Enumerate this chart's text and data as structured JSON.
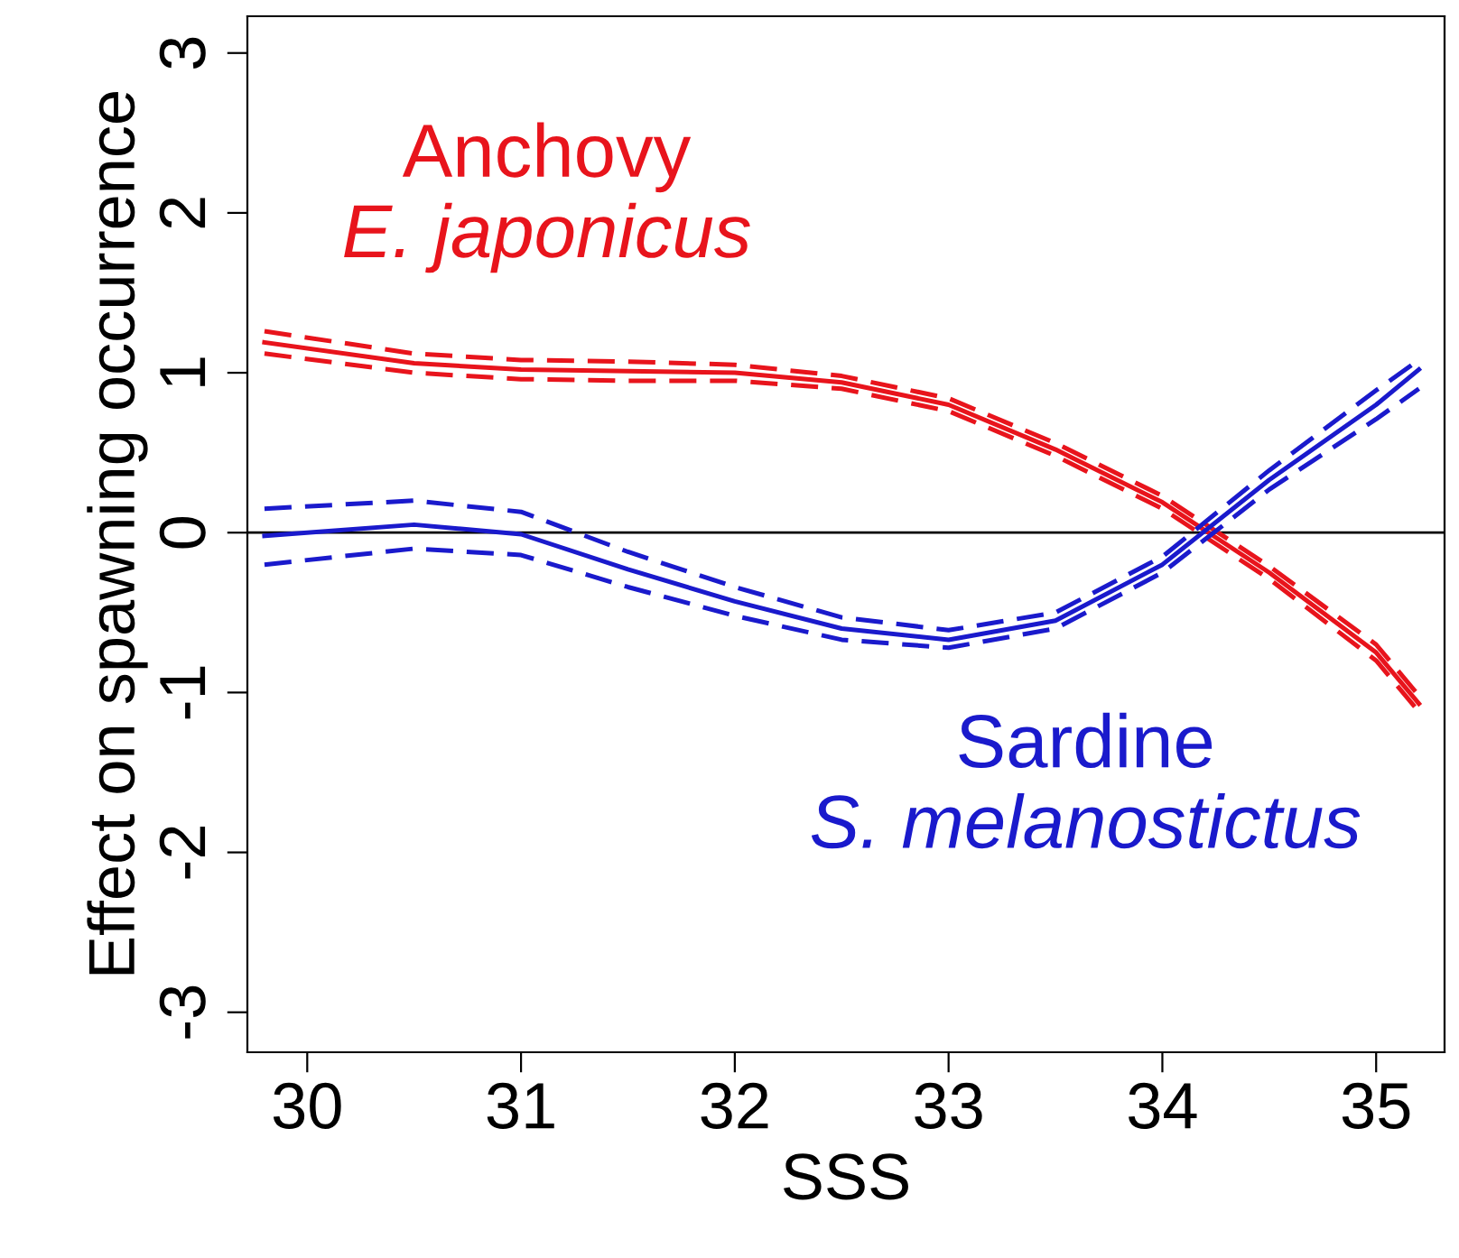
{
  "chart_data": {
    "type": "line",
    "xlabel": "SSS",
    "ylabel": "Effect on spawning occurrence",
    "xlim": [
      29.72,
      35.32
    ],
    "ylim": [
      -3.25,
      3.23
    ],
    "xticks": [
      30,
      31,
      32,
      33,
      34,
      35
    ],
    "yticks": [
      -3,
      -2,
      -1,
      0,
      1,
      2,
      3
    ],
    "grid": false,
    "legend": false,
    "line_style": "solid",
    "marker": "none",
    "ref_lines": [
      {
        "axis": "y",
        "value": 0,
        "color": "#000000"
      }
    ],
    "series": [
      {
        "name": "Anchovy\nE. japonicus",
        "color": "#e8141c",
        "x": [
          29.8,
          30.5,
          31,
          31.5,
          32,
          32.5,
          33,
          33.5,
          34,
          34.5,
          35,
          35.2
        ],
        "values": [
          1.19,
          1.06,
          1.02,
          1.01,
          1.0,
          0.94,
          0.8,
          0.52,
          0.19,
          -0.25,
          -0.75,
          -1.07
        ]
      },
      {
        "color": "#e8141c",
        "line_style": "dashed",
        "x": [
          29.8,
          30.5,
          31,
          31.5,
          32,
          32.5,
          33,
          33.5,
          34,
          34.5,
          35,
          35.2
        ],
        "values": [
          1.12,
          1.0,
          0.96,
          0.95,
          0.95,
          0.9,
          0.76,
          0.48,
          0.15,
          -0.29,
          -0.8,
          -1.12
        ]
      },
      {
        "color": "#e8141c",
        "line_style": "dashed",
        "x": [
          29.8,
          30.5,
          31,
          31.5,
          32,
          32.5,
          33,
          33.5,
          34,
          34.5,
          35,
          35.2
        ],
        "values": [
          1.26,
          1.12,
          1.08,
          1.07,
          1.05,
          0.98,
          0.84,
          0.56,
          0.23,
          -0.21,
          -0.7,
          -1.02
        ]
      },
      {
        "name": "Sardine\nS. melanostictus",
        "color": "#1a1acc",
        "x": [
          29.8,
          30.5,
          31,
          31.5,
          32,
          32.5,
          33,
          33.5,
          34,
          34.5,
          35,
          35.2
        ],
        "values": [
          -0.02,
          0.05,
          -0.01,
          -0.23,
          -0.43,
          -0.6,
          -0.67,
          -0.55,
          -0.2,
          0.33,
          0.8,
          1.02
        ]
      },
      {
        "color": "#1a1acc",
        "line_style": "dashed",
        "x": [
          29.8,
          30.5,
          31,
          31.5,
          32,
          32.5,
          33,
          33.5,
          34,
          34.5,
          35,
          35.2
        ],
        "values": [
          -0.2,
          -0.1,
          -0.14,
          -0.34,
          -0.52,
          -0.67,
          -0.72,
          -0.6,
          -0.25,
          0.27,
          0.71,
          0.9
        ]
      },
      {
        "color": "#1a1acc",
        "line_style": "dashed",
        "x": [
          29.8,
          30.5,
          31,
          31.5,
          32,
          32.5,
          33,
          33.5,
          34,
          34.5,
          35,
          35.2
        ],
        "values": [
          0.15,
          0.2,
          0.13,
          -0.12,
          -0.34,
          -0.53,
          -0.61,
          -0.5,
          -0.15,
          0.39,
          0.89,
          1.08
        ]
      }
    ]
  }
}
